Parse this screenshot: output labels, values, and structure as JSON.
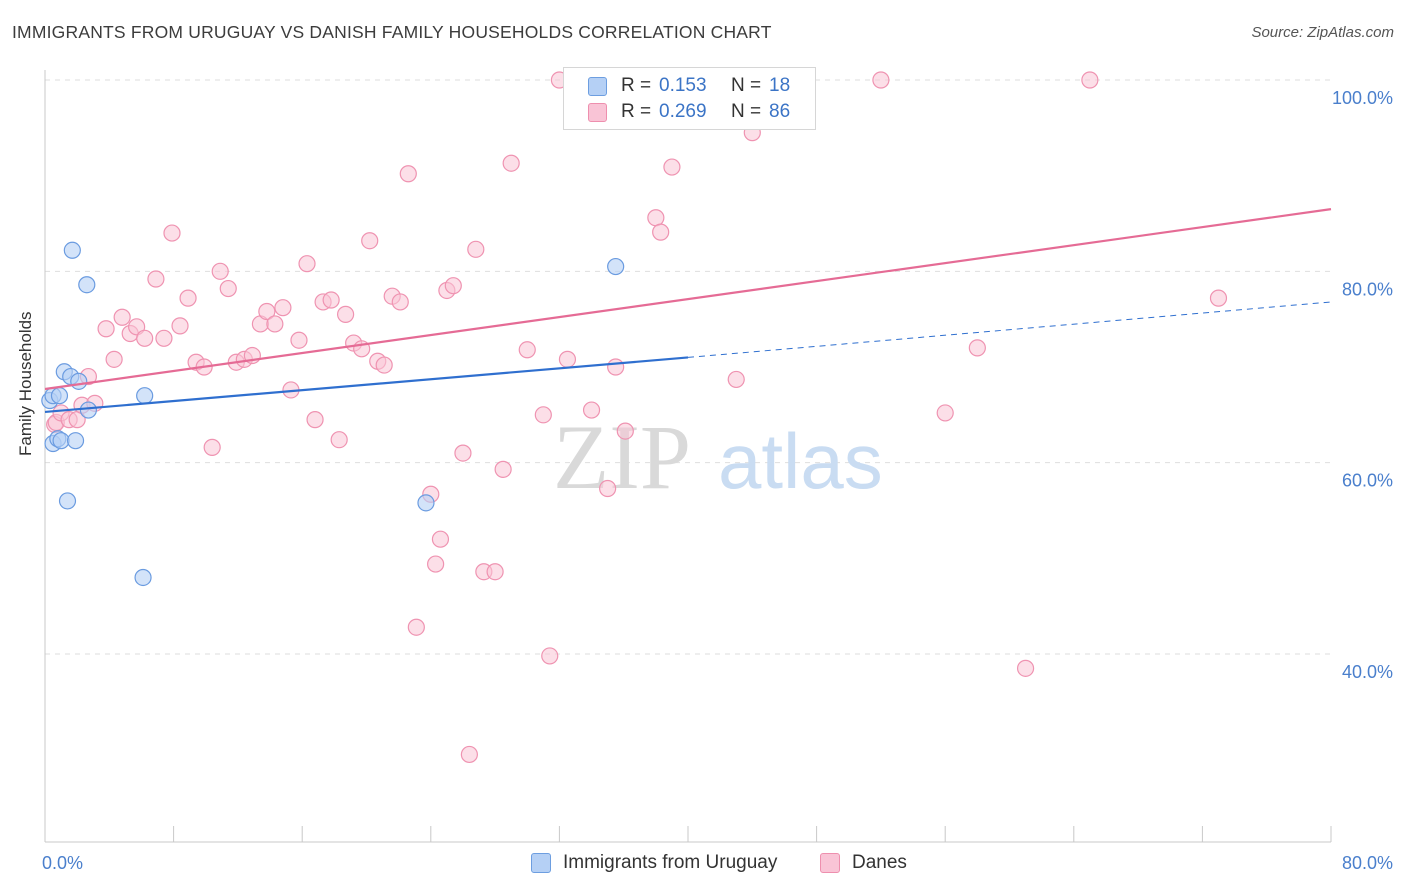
{
  "title": "IMMIGRANTS FROM URUGUAY VS DANISH FAMILY HOUSEHOLDS CORRELATION CHART",
  "source": "Source: ZipAtlas.com",
  "watermark": {
    "zip": "ZIP",
    "atlas": "atlas"
  },
  "legend": {
    "r_label": "R =",
    "n_label": "N =",
    "rows": [
      {
        "r": "0.153",
        "n": "18",
        "fill": "#b5d0f5",
        "stroke": "#6d9ee0"
      },
      {
        "r": "0.269",
        "n": "86",
        "fill": "#f9c4d6",
        "stroke": "#ee8fae"
      }
    ]
  },
  "colors": {
    "uruguay_fill": "#b5d0f5",
    "uruguay_stroke": "#6a9be0",
    "uruguay_line": "#2f6fcf",
    "danes_fill": "#f9c4d6",
    "danes_stroke": "#ef93b1",
    "danes_line": "#e56b95",
    "tick_label": "#4a7fcc",
    "grid": "#dedede",
    "axis": "#c8c8c8"
  },
  "chart_data": {
    "type": "scatter",
    "title": "IMMIGRANTS FROM URUGUAY VS DANISH FAMILY HOUSEHOLDS CORRELATION CHART",
    "xlabel": "",
    "ylabel": "Family Households",
    "xlim": [
      0,
      80
    ],
    "ylim": [
      20,
      101
    ],
    "x_tick_labels": [
      {
        "value": 0,
        "label": "0.0%"
      },
      {
        "value": 80,
        "label": "80.0%"
      }
    ],
    "y_tick_labels": [
      {
        "value": 100,
        "label": "100.0%"
      },
      {
        "value": 80,
        "label": "80.0%"
      },
      {
        "value": 60,
        "label": "60.0%"
      },
      {
        "value": 40,
        "label": "40.0%"
      }
    ],
    "grid_y": [
      100,
      80,
      60,
      40
    ],
    "legend_position": "top-center",
    "series": [
      {
        "name": "Immigrants from Uruguay",
        "points": [
          [
            0.3,
            66.5
          ],
          [
            0.5,
            67.0
          ],
          [
            0.5,
            62.0
          ],
          [
            0.8,
            62.5
          ],
          [
            0.9,
            67.0
          ],
          [
            1.0,
            62.3
          ],
          [
            1.2,
            69.5
          ],
          [
            1.4,
            56.0
          ],
          [
            1.6,
            69.0
          ],
          [
            1.7,
            82.2
          ],
          [
            1.9,
            62.3
          ],
          [
            2.1,
            68.5
          ],
          [
            2.6,
            78.6
          ],
          [
            2.7,
            65.5
          ],
          [
            6.1,
            48.0
          ],
          [
            6.2,
            67.0
          ],
          [
            23.7,
            55.8
          ],
          [
            35.5,
            80.5
          ]
        ],
        "trend": {
          "x_start": 0,
          "y_start": 65.3,
          "x_solid_end": 40,
          "y_solid_end": 71.0,
          "x_dashed_end": 80,
          "y_dashed_end": 76.8
        }
      },
      {
        "name": "Danes",
        "points": [
          [
            0.6,
            64.0
          ],
          [
            0.7,
            64.2
          ],
          [
            1.0,
            65.2
          ],
          [
            1.5,
            64.5
          ],
          [
            2.0,
            64.5
          ],
          [
            2.3,
            66.0
          ],
          [
            2.7,
            69.0
          ],
          [
            3.1,
            66.2
          ],
          [
            3.8,
            74.0
          ],
          [
            4.3,
            70.8
          ],
          [
            4.8,
            75.2
          ],
          [
            5.3,
            73.5
          ],
          [
            5.7,
            74.2
          ],
          [
            6.2,
            73.0
          ],
          [
            6.9,
            79.2
          ],
          [
            7.4,
            73.0
          ],
          [
            7.9,
            84.0
          ],
          [
            8.4,
            74.3
          ],
          [
            8.9,
            77.2
          ],
          [
            9.4,
            70.5
          ],
          [
            9.9,
            70.0
          ],
          [
            10.4,
            61.6
          ],
          [
            10.9,
            80.0
          ],
          [
            11.4,
            78.2
          ],
          [
            11.9,
            70.5
          ],
          [
            12.4,
            70.8
          ],
          [
            12.9,
            71.2
          ],
          [
            13.4,
            74.5
          ],
          [
            13.8,
            75.8
          ],
          [
            14.3,
            74.5
          ],
          [
            14.8,
            76.2
          ],
          [
            15.3,
            67.6
          ],
          [
            15.8,
            72.8
          ],
          [
            16.3,
            80.8
          ],
          [
            16.8,
            64.5
          ],
          [
            17.3,
            76.8
          ],
          [
            17.8,
            77.0
          ],
          [
            18.3,
            62.4
          ],
          [
            18.7,
            75.5
          ],
          [
            19.2,
            72.5
          ],
          [
            19.7,
            71.9
          ],
          [
            20.2,
            83.2
          ],
          [
            20.7,
            70.6
          ],
          [
            21.1,
            70.2
          ],
          [
            21.6,
            77.4
          ],
          [
            22.1,
            76.8
          ],
          [
            22.6,
            90.2
          ],
          [
            23.1,
            42.8
          ],
          [
            24.0,
            56.7
          ],
          [
            24.3,
            49.4
          ],
          [
            24.6,
            52.0
          ],
          [
            25.0,
            78.0
          ],
          [
            25.4,
            78.5
          ],
          [
            26.0,
            61.0
          ],
          [
            26.4,
            29.5
          ],
          [
            26.8,
            82.3
          ],
          [
            27.3,
            48.6
          ],
          [
            28.0,
            48.6
          ],
          [
            28.5,
            59.3
          ],
          [
            29.0,
            91.3
          ],
          [
            30.0,
            71.8
          ],
          [
            31.0,
            65.0
          ],
          [
            31.4,
            39.8
          ],
          [
            32.0,
            100.0
          ],
          [
            32.5,
            70.8
          ],
          [
            33.0,
            100.0
          ],
          [
            34.0,
            65.5
          ],
          [
            35.0,
            57.3
          ],
          [
            35.5,
            70.0
          ],
          [
            36.1,
            63.3
          ],
          [
            36.4,
            96.0
          ],
          [
            37.0,
            100.0
          ],
          [
            38.0,
            85.6
          ],
          [
            38.3,
            84.1
          ],
          [
            39.0,
            90.9
          ],
          [
            41.0,
            100.0
          ],
          [
            42.0,
            100.0
          ],
          [
            43.0,
            68.7
          ],
          [
            44.0,
            94.5
          ],
          [
            44.8,
            100.0
          ],
          [
            52.0,
            100.0
          ],
          [
            56.0,
            65.2
          ],
          [
            58.0,
            72.0
          ],
          [
            61.0,
            38.5
          ],
          [
            65.0,
            100.0
          ],
          [
            73.0,
            77.2
          ]
        ],
        "trend": {
          "x_start": 0,
          "y_start": 67.7,
          "x_end": 80,
          "y_end": 86.5
        }
      }
    ]
  },
  "bottom_legend": [
    {
      "label": "Immigrants from Uruguay",
      "fill": "#b5d0f5",
      "stroke": "#6d9ee0"
    },
    {
      "label": "Danes",
      "fill": "#f9c4d6",
      "stroke": "#ee8fae"
    }
  ]
}
